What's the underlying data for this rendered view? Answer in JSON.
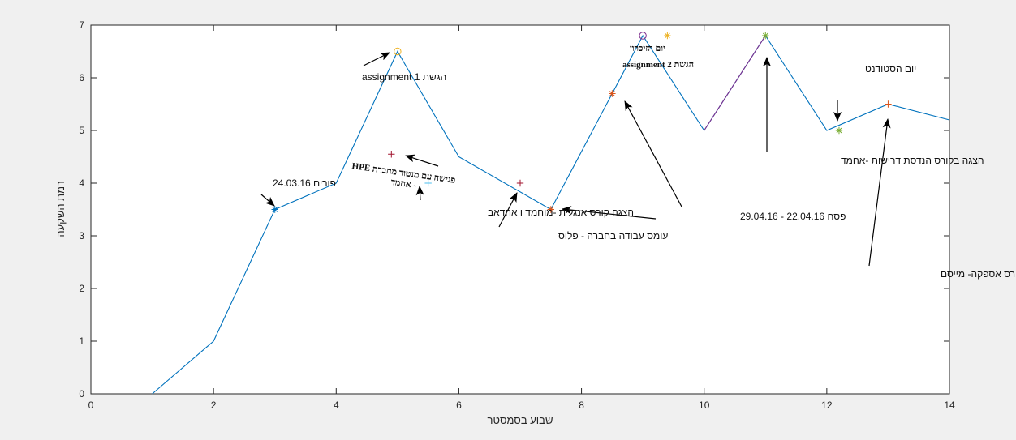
{
  "chart_data": {
    "type": "line",
    "xlabel": "שבוע בסמסטר",
    "ylabel": "רמת השקעה",
    "xlim": [
      0,
      14
    ],
    "ylim": [
      0,
      7
    ],
    "xticks": [
      0,
      2,
      4,
      6,
      8,
      10,
      12,
      14
    ],
    "yticks": [
      0,
      1,
      2,
      3,
      4,
      5,
      6,
      7
    ],
    "grid": false,
    "series": [
      {
        "color": "#0072bd",
        "x": [
          1,
          2,
          3,
          4,
          5,
          6,
          7.5,
          8.5,
          9,
          10,
          11,
          12,
          13,
          14
        ],
        "y": [
          0,
          1,
          3.5,
          4,
          6.5,
          4.5,
          3.5,
          5.7,
          6.8,
          5,
          6.8,
          5,
          5.5,
          5.2
        ]
      }
    ],
    "markers": [
      {
        "x": 3,
        "y": 3.5,
        "symbol": "*",
        "color": "#0072bd"
      },
      {
        "x": 5,
        "y": 6.5,
        "symbol": "o",
        "color": "#edb120"
      },
      {
        "x": 4.9,
        "y": 4.55,
        "symbol": "+",
        "color": "#a2142f"
      },
      {
        "x": 5.5,
        "y": 4,
        "symbol": "+",
        "color": "#4dbeee"
      },
      {
        "x": 7,
        "y": 4,
        "symbol": "+",
        "color": "#a2142f"
      },
      {
        "x": 7.5,
        "y": 3.5,
        "symbol": "*",
        "color": "#d95319"
      },
      {
        "x": 8.5,
        "y": 5.7,
        "symbol": "*",
        "color": "#d95319"
      },
      {
        "x": 9,
        "y": 6.8,
        "symbol": "o",
        "color": "#7e2f8e"
      },
      {
        "x": 9.4,
        "y": 6.8,
        "symbol": "*",
        "color": "#edb120"
      },
      {
        "x": 11,
        "y": 6.8,
        "symbol": "*",
        "color": "#77ac30"
      },
      {
        "x": 12.2,
        "y": 5,
        "symbol": "*",
        "color": "#77ac30"
      },
      {
        "x": 13,
        "y": 5.5,
        "symbol": "+",
        "color": "#d95319"
      }
    ],
    "annotations": [
      {
        "text": "פורים  24.03.16",
        "style": "sans",
        "anchor": "end"
      },
      {
        "text": "הגשת assignment 1",
        "style": "sans",
        "anchor": "end"
      },
      {
        "text": "פגישה עם מנטור מחברת HPE",
        "style": "serif",
        "anchor": "middle"
      },
      {
        "text": "- אחמד",
        "style": "serif",
        "anchor": "middle"
      },
      {
        "text": "הצגה קורס אנגלית -מוחמד ו אהדאב",
        "style": "sans",
        "anchor": "end"
      },
      {
        "text": "עומס עבודה בחברה - פלוס",
        "style": "sans",
        "anchor": "end"
      },
      {
        "text": "הגשת assignment 2",
        "style": "serif",
        "anchor": "end"
      },
      {
        "text": "יום הזיכרון",
        "style": "serif",
        "anchor": "start"
      },
      {
        "text": "פסח 22.04.16  - 29.04.16",
        "style": "sans",
        "anchor": "end"
      },
      {
        "text": "הצגה בקורס הנדסת דרישות -אחמד",
        "style": "sans",
        "anchor": "end"
      },
      {
        "text": "יום הסטודנט",
        "style": "sans",
        "anchor": "end"
      },
      {
        "text": "הגשת עבודה בקורס אספקה- מייסם",
        "style": "sans",
        "anchor": "end"
      }
    ]
  }
}
